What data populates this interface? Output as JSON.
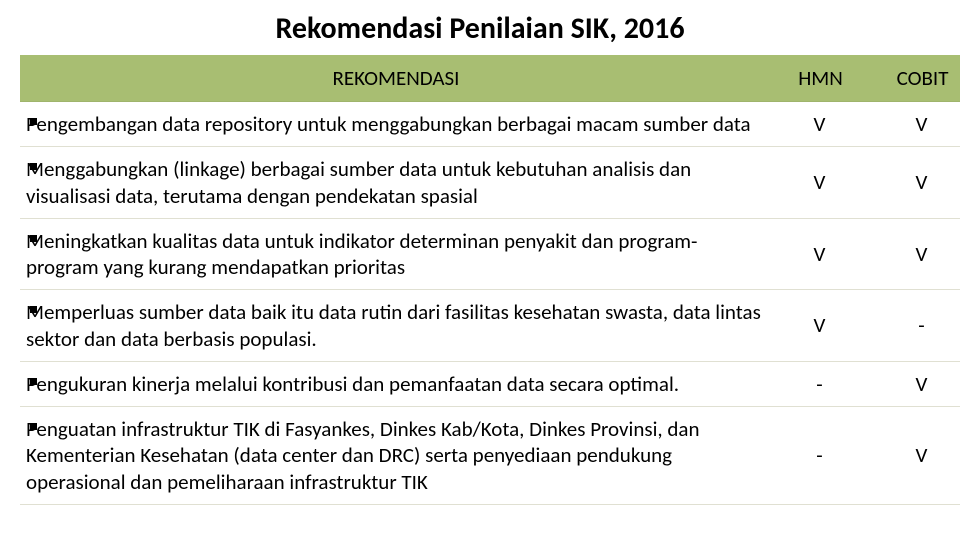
{
  "title": "Rekomendasi Penilaian SIK, 2016",
  "table": {
    "header_bg": "#a8be72",
    "header_color": "#000000",
    "border_color": "#e0e0d2",
    "bullet_color": "#000000",
    "columns": {
      "rec": "REKOMENDASI",
      "hmn": "HMN",
      "cobit": "COBIT"
    },
    "rows": [
      {
        "text": "Pengembangan data repository untuk menggabungkan berbagai macam sumber data",
        "hmn": "V",
        "cobit": "V"
      },
      {
        "text": "Menggabungkan (linkage) berbagai sumber data untuk kebutuhan analisis dan visualisasi data, terutama dengan pendekatan spasial",
        "hmn": "V",
        "cobit": "V"
      },
      {
        "text": "Meningkatkan kualitas data untuk indikator determinan penyakit dan program-program yang kurang mendapatkan prioritas",
        "hmn": "V",
        "cobit": "V"
      },
      {
        "text": "Memperluas sumber data baik itu data rutin dari fasilitas kesehatan swasta, data lintas sektor dan data berbasis populasi.",
        "hmn": "V",
        "cobit": "-"
      },
      {
        "text": "Pengukuran kinerja melalui kontribusi dan pemanfaatan data secara optimal.",
        "hmn": "-",
        "cobit": "V"
      },
      {
        "text": "Penguatan infrastruktur TIK di Fasyankes, Dinkes Kab/Kota, Dinkes Provinsi, dan Kementerian Kesehatan (data center dan DRC) serta penyediaan pendukung operasional dan pemeliharaan infrastruktur TIK",
        "hmn": "-",
        "cobit": "V"
      }
    ]
  },
  "footer_band_color": "#dd8500"
}
